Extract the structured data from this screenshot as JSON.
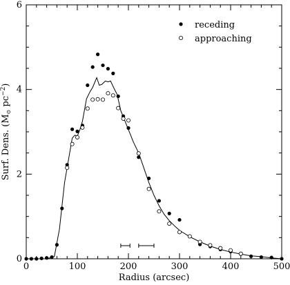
{
  "chart_data": {
    "type": "scatter",
    "xlabel": "Radius (arcsec)",
    "ylabel": "Surf. Dens. (M",
    "ylabel_unit": " pc",
    "ylabel_exp": "−2",
    "ylabel_close": ")",
    "sun_symbol": "⊙",
    "xlim": [
      0,
      500
    ],
    "ylim": [
      0,
      6
    ],
    "x_ticks": [
      "0",
      "100",
      "200",
      "300",
      "400",
      "500"
    ],
    "y_ticks": [
      "0",
      "2",
      "4",
      "6"
    ],
    "legend_position": "top-right",
    "series": [
      {
        "name": "receding",
        "marker": "filled-circle",
        "points": [
          [
            0,
            0
          ],
          [
            10,
            0
          ],
          [
            20,
            0
          ],
          [
            30,
            0.01
          ],
          [
            40,
            0.02
          ],
          [
            50,
            0.04
          ],
          [
            60,
            0.33
          ],
          [
            70,
            1.19
          ],
          [
            80,
            2.22
          ],
          [
            90,
            3.06
          ],
          [
            100,
            3.01
          ],
          [
            110,
            3.15
          ],
          [
            120,
            4.1
          ],
          [
            130,
            4.53
          ],
          [
            140,
            4.83
          ],
          [
            150,
            4.57
          ],
          [
            160,
            4.49
          ],
          [
            170,
            4.38
          ],
          [
            180,
            3.84
          ],
          [
            190,
            3.37
          ],
          [
            200,
            3.09
          ],
          [
            220,
            2.4
          ],
          [
            240,
            1.9
          ],
          [
            260,
            1.37
          ],
          [
            280,
            1.07
          ],
          [
            300,
            0.92
          ],
          [
            320,
            0.53
          ],
          [
            340,
            0.34
          ],
          [
            360,
            0.29
          ],
          [
            380,
            0.22
          ],
          [
            400,
            0.17
          ],
          [
            420,
            0.11
          ],
          [
            440,
            0.06
          ],
          [
            460,
            0.04
          ],
          [
            480,
            0.03
          ],
          [
            500,
            0
          ]
        ]
      },
      {
        "name": "approaching",
        "marker": "open-circle",
        "points": [
          [
            80,
            2.15
          ],
          [
            90,
            2.71
          ],
          [
            100,
            2.87
          ],
          [
            110,
            3.1
          ],
          [
            120,
            3.55
          ],
          [
            130,
            3.76
          ],
          [
            140,
            3.77
          ],
          [
            150,
            3.76
          ],
          [
            160,
            3.91
          ],
          [
            170,
            3.86
          ],
          [
            180,
            3.56
          ],
          [
            190,
            3.31
          ],
          [
            200,
            3.27
          ],
          [
            220,
            2.49
          ],
          [
            240,
            1.65
          ],
          [
            260,
            1.12
          ],
          [
            280,
            0.83
          ],
          [
            300,
            0.63
          ],
          [
            320,
            0.53
          ],
          [
            340,
            0.4
          ],
          [
            360,
            0.32
          ],
          [
            380,
            0.25
          ],
          [
            400,
            0.2
          ],
          [
            420,
            0.12
          ]
        ]
      },
      {
        "name": "",
        "marker": "line",
        "points": [
          [
            0,
            0
          ],
          [
            40,
            0
          ],
          [
            55,
            0.05
          ],
          [
            65,
            0.7
          ],
          [
            75,
            1.8
          ],
          [
            85,
            2.5
          ],
          [
            90,
            2.85
          ],
          [
            95,
            2.92
          ],
          [
            100,
            2.9
          ],
          [
            105,
            3.05
          ],
          [
            110,
            3.25
          ],
          [
            118,
            3.78
          ],
          [
            125,
            3.95
          ],
          [
            130,
            4.05
          ],
          [
            138,
            4.28
          ],
          [
            143,
            4.1
          ],
          [
            148,
            4.12
          ],
          [
            155,
            4.2
          ],
          [
            160,
            4.18
          ],
          [
            165,
            4.2
          ],
          [
            172,
            4.02
          ],
          [
            178,
            3.88
          ],
          [
            185,
            3.5
          ],
          [
            195,
            3.2
          ],
          [
            210,
            2.75
          ],
          [
            220,
            2.5
          ],
          [
            230,
            2.15
          ],
          [
            240,
            1.8
          ],
          [
            250,
            1.5
          ],
          [
            260,
            1.25
          ],
          [
            270,
            1.05
          ],
          [
            280,
            0.9
          ],
          [
            290,
            0.78
          ],
          [
            300,
            0.67
          ],
          [
            320,
            0.52
          ],
          [
            340,
            0.4
          ],
          [
            360,
            0.3
          ],
          [
            380,
            0.22
          ],
          [
            400,
            0.16
          ],
          [
            420,
            0.11
          ],
          [
            440,
            0.07
          ],
          [
            460,
            0.05
          ],
          [
            480,
            0.02
          ],
          [
            500,
            0
          ]
        ]
      }
    ],
    "error_bars": [
      {
        "x_from": 185,
        "x_to": 203,
        "y": 0.31
      },
      {
        "x_from": 220,
        "x_to": 250,
        "y": 0.31
      }
    ]
  }
}
